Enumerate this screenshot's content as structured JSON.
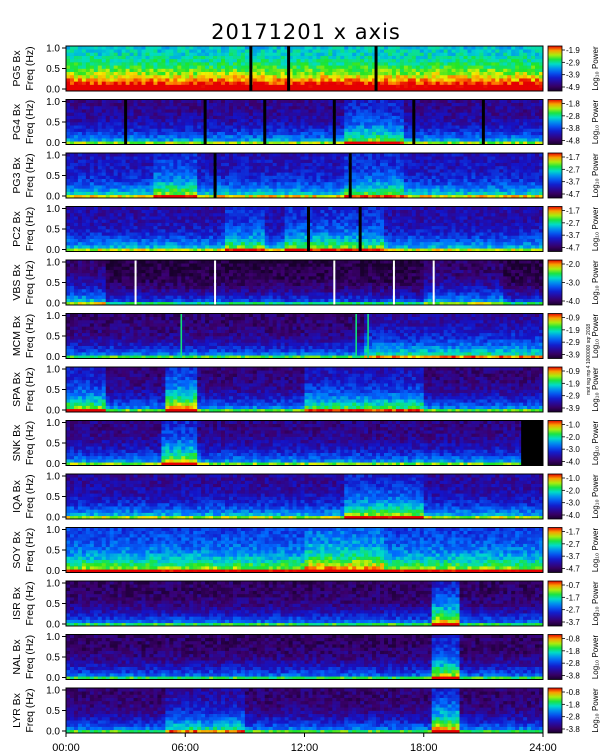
{
  "side_note": "mot reg mp 4 1000000 sqr 2018",
  "chart_data": [
    {
      "type": "heatmap",
      "title": "20171201 x axis",
      "station": "PG5",
      "ylabel": "PG5 Bx\nFreq (Hz)",
      "yticks": [
        "1.0",
        "0.5",
        "0.0"
      ],
      "colorbar_label": "Log₁₀ Power",
      "colorbar_ticks": [
        "-1.9",
        "-2.9",
        "-3.9",
        "-4.9"
      ],
      "base": 0.42,
      "hot_windows": [
        [
          0,
          24,
          0.35
        ]
      ],
      "black_lines": [
        9.3,
        11.2,
        15.6
      ]
    },
    {
      "type": "heatmap",
      "station": "PG4",
      "ylabel": "PG4 Bx\nFreq (Hz)",
      "yticks": [
        "1.0",
        "0.5",
        "0.0"
      ],
      "colorbar_label": "Log₁₀ Power",
      "colorbar_ticks": [
        "-1.8",
        "-2.8",
        "-3.8",
        "-4.8"
      ],
      "base": 0.18,
      "hot_windows": [
        [
          14,
          17,
          0.25
        ]
      ],
      "black_lines": [
        3,
        7,
        10,
        13.5,
        17.5,
        21
      ]
    },
    {
      "type": "heatmap",
      "station": "PG3",
      "ylabel": "PG3 Bx\nFreq (Hz)",
      "yticks": [
        "1.0",
        "0.5",
        "0.0"
      ],
      "colorbar_label": "Log₁₀ Power",
      "colorbar_ticks": [
        "-1.7",
        "-2.7",
        "-3.7",
        "-4.7"
      ],
      "base": 0.25,
      "hot_windows": [
        [
          4.5,
          6.5,
          0.2
        ],
        [
          14,
          17,
          0.15
        ]
      ],
      "black_lines": [
        7.5,
        14.3
      ]
    },
    {
      "type": "heatmap",
      "station": "PC2",
      "ylabel": "PC2 Bx\nFreq (Hz)",
      "yticks": [
        "1.0",
        "0.5",
        "0.0"
      ],
      "colorbar_label": "Log₁₀ Power",
      "colorbar_ticks": [
        "-1.7",
        "-2.7",
        "-3.7",
        "-4.7"
      ],
      "base": 0.22,
      "hot_windows": [
        [
          8,
          10,
          0.2
        ],
        [
          11,
          16,
          0.2
        ]
      ],
      "black_lines": [
        12.2,
        14.8
      ]
    },
    {
      "type": "heatmap",
      "station": "VBS",
      "ylabel": "VBS Bx\nFreq (Hz)",
      "yticks": [
        "1.0",
        "0.5",
        "0.0"
      ],
      "colorbar_label": "Log₁₀ Power",
      "colorbar_ticks": [
        "-2.0",
        "-3.0",
        "-4.0"
      ],
      "base": 0.04,
      "hot_windows": [
        [
          0,
          2,
          0.2
        ],
        [
          18,
          22,
          0.15
        ]
      ],
      "white_lines": [
        3.5,
        7.5,
        13.5,
        16.5,
        18.5
      ]
    },
    {
      "type": "heatmap",
      "station": "MCM",
      "ylabel": "MCM Bx\nFreq (Hz)",
      "yticks": [
        "1.0",
        "0.5",
        "0.0"
      ],
      "colorbar_label": "Log₁₀ Power",
      "colorbar_ticks": [
        "-0.9",
        "-1.9",
        "-2.9",
        "-3.9"
      ],
      "base": 0.12,
      "hot_windows": [
        [
          15,
          24,
          0.2
        ]
      ],
      "bright_lines": [
        5.8,
        14.6,
        15.2
      ]
    },
    {
      "type": "heatmap",
      "station": "SPA",
      "ylabel": "SPA Bx\nFreq (Hz)",
      "yticks": [
        "1.0",
        "0.5",
        "0.0"
      ],
      "colorbar_label": "Log₁₀ Power",
      "colorbar_ticks": [
        "-0.9",
        "-1.9",
        "-2.9",
        "-3.9"
      ],
      "base": 0.14,
      "hot_windows": [
        [
          0,
          2,
          0.3
        ],
        [
          5,
          6.5,
          0.45
        ],
        [
          12,
          18,
          0.25
        ]
      ]
    },
    {
      "type": "heatmap",
      "station": "SNK",
      "ylabel": "SNK Bx\nFreq (Hz)",
      "yticks": [
        "1.0",
        "0.5",
        "0.0"
      ],
      "colorbar_label": "Log₁₀ Power",
      "colorbar_ticks": [
        "-1.0",
        "-2.0",
        "-3.0",
        "-4.0"
      ],
      "base": 0.16,
      "hot_windows": [
        [
          4.8,
          6.5,
          0.35
        ]
      ],
      "black_block": [
        22.9,
        24
      ]
    },
    {
      "type": "heatmap",
      "station": "IQA",
      "ylabel": "IQA Bx\nFreq (Hz)",
      "yticks": [
        "1.0",
        "0.5",
        "0.0"
      ],
      "colorbar_label": "Log₁₀ Power",
      "colorbar_ticks": [
        "-1.0",
        "-2.0",
        "-3.0",
        "-4.0"
      ],
      "base": 0.2,
      "hot_windows": [
        [
          14,
          18,
          0.25
        ]
      ]
    },
    {
      "type": "heatmap",
      "station": "SOY",
      "ylabel": "SOY Bx\nFreq (Hz)",
      "yticks": [
        "1.0",
        "0.5",
        "0.0"
      ],
      "colorbar_label": "Log₁₀ Power",
      "colorbar_ticks": [
        "-1.7",
        "-2.7",
        "-3.7",
        "-4.7"
      ],
      "base": 0.3,
      "hot_windows": [
        [
          0,
          24,
          0.15
        ],
        [
          12,
          16,
          0.15
        ]
      ]
    },
    {
      "type": "heatmap",
      "station": "ISR",
      "ylabel": "ISR Bx\nFreq (Hz)",
      "yticks": [
        "1.0",
        "0.5",
        "0.0"
      ],
      "colorbar_label": "Log₁₀ Power",
      "colorbar_ticks": [
        "-0.7",
        "-1.7",
        "-2.7",
        "-3.7"
      ],
      "base": 0.1,
      "hot_windows": [
        [
          18.5,
          19.8,
          0.45
        ]
      ]
    },
    {
      "type": "heatmap",
      "station": "NAL",
      "ylabel": "NAL Bx\nFreq (Hz)",
      "yticks": [
        "1.0",
        "0.5",
        "0.0"
      ],
      "colorbar_label": "Log₁₀ Power",
      "colorbar_ticks": [
        "-0.8",
        "-1.8",
        "-2.8",
        "-3.8"
      ],
      "base": 0.1,
      "hot_windows": [
        [
          18.5,
          19.8,
          0.4
        ]
      ]
    },
    {
      "type": "heatmap",
      "station": "LYR",
      "ylabel": "LYR Bx\nFreq (Hz)",
      "yticks": [
        "1.0",
        "0.5",
        "0.0"
      ],
      "colorbar_label": "Log₁₀ Power",
      "colorbar_ticks": [
        "-0.8",
        "-1.8",
        "-2.8",
        "-3.8"
      ],
      "base": 0.12,
      "hot_windows": [
        [
          5,
          9,
          0.2
        ],
        [
          18.5,
          19.8,
          0.45
        ]
      ]
    }
  ],
  "x_axis": {
    "ticks": [
      "00:00",
      "06:00",
      "12:00",
      "18:00",
      "24:00"
    ],
    "range": [
      0,
      24
    ]
  }
}
